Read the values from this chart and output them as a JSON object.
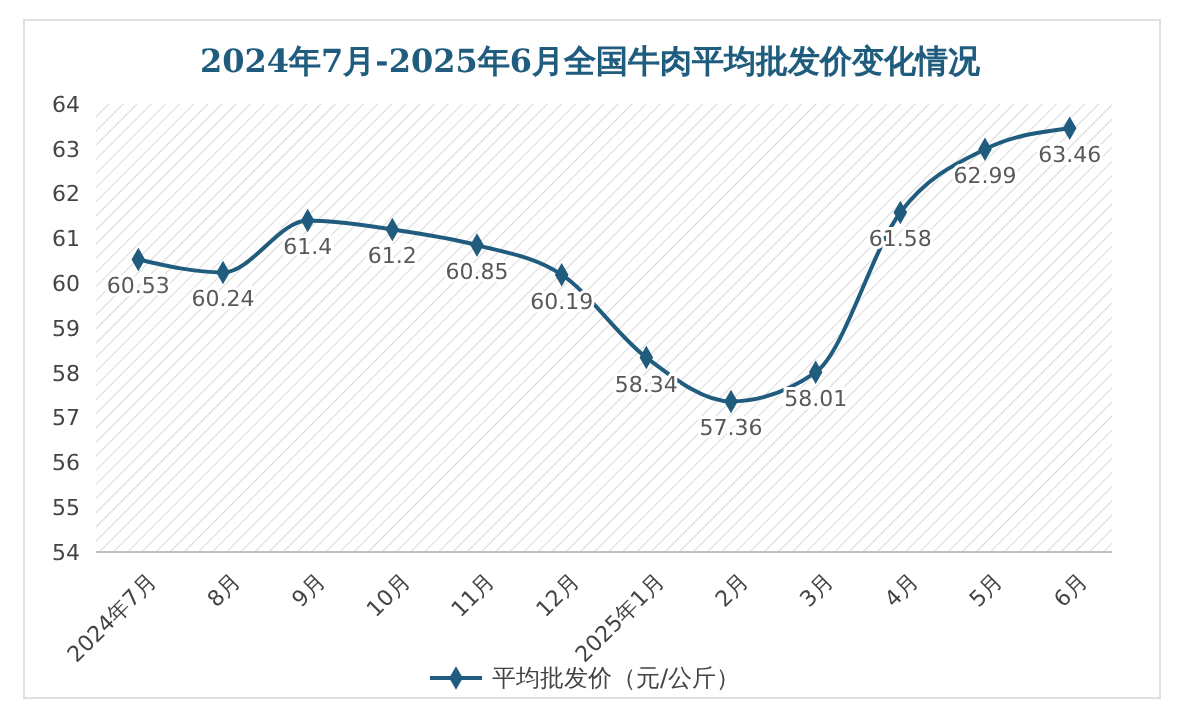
{
  "chart_data": {
    "type": "line",
    "title": "2024年7月-2025年6月全国牛肉平均批发价变化情况",
    "categories": [
      "2024年7月",
      "8月",
      "9月",
      "10月",
      "11月",
      "12月",
      "2025年1月",
      "2月",
      "3月",
      "4月",
      "5月",
      "6月"
    ],
    "series": [
      {
        "name": "平均批发价（元/公斤）",
        "color": "#1f5c7d",
        "values": [
          60.53,
          60.24,
          61.4,
          61.2,
          60.85,
          60.19,
          58.34,
          57.36,
          58.01,
          61.58,
          62.99,
          63.46
        ]
      }
    ],
    "ylim": [
      54,
      64
    ],
    "yticks": [
      54,
      55,
      56,
      57,
      58,
      59,
      60,
      61,
      62,
      63,
      64
    ],
    "data_labels": true,
    "marker": "diamond",
    "legend": "bottom",
    "grid": false
  }
}
